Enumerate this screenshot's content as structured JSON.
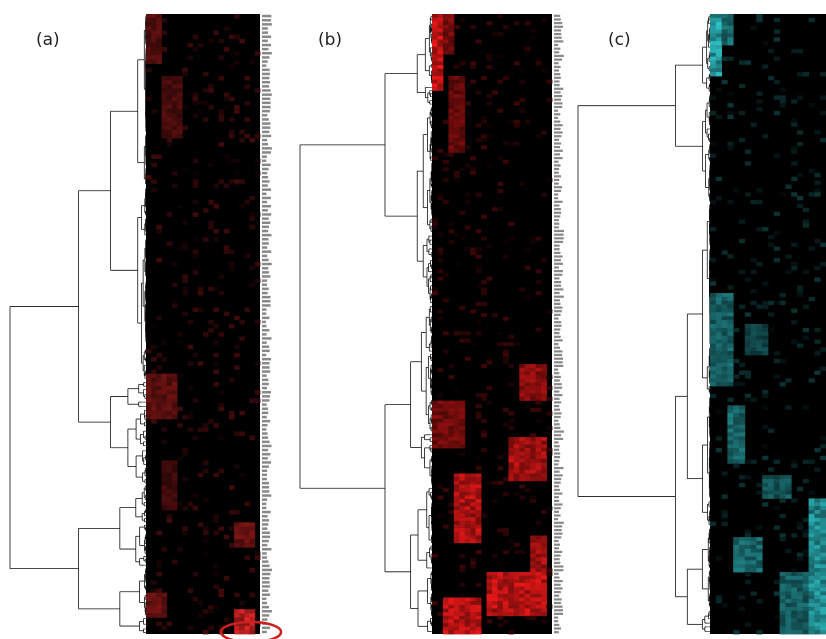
{
  "figure": {
    "panels": [
      {
        "id": "a",
        "label": "(a)",
        "heat_color": "#ff2a2a",
        "dendrogram_side": "left",
        "row_labels_visible": true,
        "highlight": "red-ellipse-bottom-right"
      },
      {
        "id": "b",
        "label": "(b)",
        "heat_color": "#ff1a1a",
        "dendrogram_side": "left",
        "row_labels_visible": true
      },
      {
        "id": "c",
        "label": "(c)",
        "heat_color": "#33d6dc",
        "dendrogram_side": "left",
        "row_labels_visible": false
      }
    ],
    "colors": {
      "background": "#000000",
      "dendrogram": "#111111",
      "row_label_text": "#888888",
      "highlight_ellipse": "#cc1f1f"
    }
  }
}
